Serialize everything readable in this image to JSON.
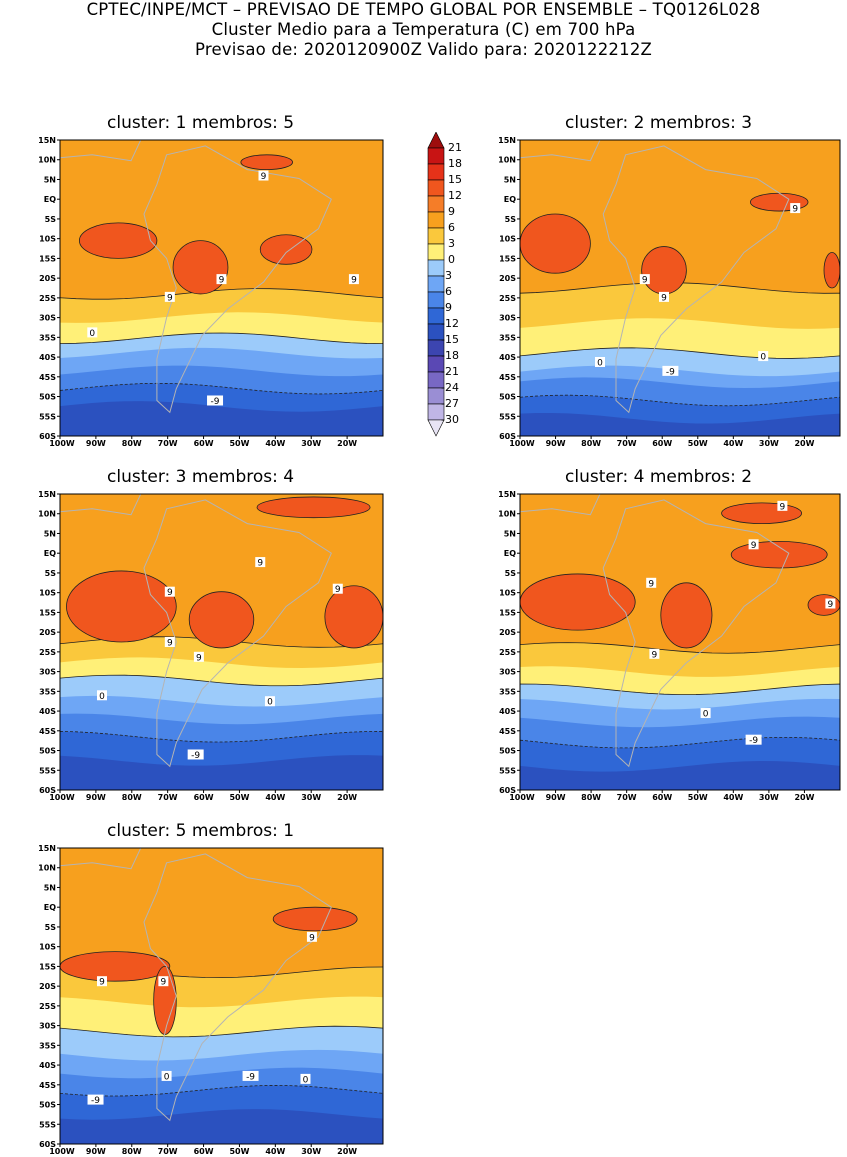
{
  "header": {
    "line1": "CPTEC/INPE/MCT – PREVISAO DE TEMPO GLOBAL POR ENSEMBLE – TQ0126L028",
    "line2": "Cluster Medio para a Temperatura (C) em 700 hPa",
    "line3": "Previsao de: 2020120900Z    Valido para: 2020122212Z"
  },
  "axes": {
    "lat_labels": [
      "15N",
      "10N",
      "5N",
      "EQ",
      "5S",
      "10S",
      "15S",
      "20S",
      "25S",
      "30S",
      "35S",
      "40S",
      "45S",
      "50S",
      "55S",
      "60S"
    ],
    "lon_labels": [
      "100W",
      "90W",
      "80W",
      "70W",
      "60W",
      "50W",
      "40W",
      "30W",
      "20W"
    ]
  },
  "colorbar": {
    "levels": [
      "21",
      "18",
      "15",
      "12",
      "9",
      "6",
      "3",
      "0",
      "-3",
      "-6",
      "-9",
      "-12",
      "-15",
      "-18",
      "-21",
      "-24",
      "-27",
      "-30"
    ],
    "colors": [
      "#9e0d0d",
      "#c81414",
      "#e63219",
      "#f0561e",
      "#f57d28",
      "#f7a01e",
      "#fac83c",
      "#fff078",
      "#9ccbfa",
      "#6ea6f5",
      "#4a85e8",
      "#2f67d6",
      "#2b51bf",
      "#3c45b0",
      "#5a48b4",
      "#7868c4",
      "#9a8ed4",
      "#c0b6e6",
      "#e8e4f4"
    ]
  },
  "colors": {
    "warm_band": "#f7a01e",
    "hot_patch": "#f0561e",
    "mild_band": "#fac83c",
    "cool_band": "#fff078",
    "cold1": "#9ccbfa",
    "cold2": "#6ea6f5",
    "cold3": "#4a85e8",
    "cold4": "#2f67d6",
    "cold5": "#2b51bf",
    "cold6": "#3c45b0",
    "land_outline": "#b4b4b4"
  },
  "panels": [
    {
      "title": "cluster: 1   membros: 5",
      "contour_labels": [
        "9",
        "9",
        "9",
        "9",
        "0",
        "-9"
      ],
      "bands": [
        0.0,
        0.0,
        0.52,
        0.6,
        0.67,
        0.72,
        0.78,
        0.84,
        0.9
      ],
      "patches": [
        [
          0.06,
          0.28,
          0.3,
          0.4
        ],
        [
          0.35,
          0.34,
          0.52,
          0.52
        ],
        [
          0.62,
          0.32,
          0.78,
          0.42
        ],
        [
          0.56,
          0.05,
          0.72,
          0.1
        ]
      ],
      "labels_pos": [
        [
          0.63,
          0.12
        ],
        [
          0.5,
          0.47
        ],
        [
          0.34,
          0.53
        ],
        [
          0.91,
          0.47
        ],
        [
          0.1,
          0.65
        ],
        [
          0.48,
          0.88
        ]
      ]
    },
    {
      "title": "cluster: 2   membros: 3",
      "contour_labels": [
        "9",
        "9",
        "9",
        "0",
        "0",
        "-9"
      ],
      "bands": [
        0.0,
        0.0,
        0.5,
        0.62,
        0.72,
        0.78,
        0.82,
        0.88,
        0.94
      ],
      "patches": [
        [
          0.0,
          0.25,
          0.22,
          0.45
        ],
        [
          0.38,
          0.36,
          0.52,
          0.52
        ],
        [
          0.72,
          0.18,
          0.9,
          0.24
        ],
        [
          0.95,
          0.38,
          1.0,
          0.5
        ]
      ],
      "labels_pos": [
        [
          0.86,
          0.23
        ],
        [
          0.39,
          0.47
        ],
        [
          0.45,
          0.53
        ],
        [
          0.25,
          0.75
        ],
        [
          0.76,
          0.73
        ],
        [
          0.47,
          0.78
        ]
      ]
    },
    {
      "title": "cluster: 3   membros: 4",
      "contour_labels": [
        "9",
        "9",
        "9",
        "9",
        "9",
        "0",
        "0",
        "-9"
      ],
      "bands": [
        0.0,
        0.0,
        0.5,
        0.57,
        0.63,
        0.7,
        0.76,
        0.82,
        0.9
      ],
      "patches": [
        [
          0.02,
          0.26,
          0.36,
          0.5
        ],
        [
          0.4,
          0.33,
          0.6,
          0.52
        ],
        [
          0.82,
          0.31,
          1.0,
          0.52
        ],
        [
          0.61,
          0.01,
          0.96,
          0.08
        ]
      ],
      "labels_pos": [
        [
          0.34,
          0.33
        ],
        [
          0.62,
          0.23
        ],
        [
          0.86,
          0.32
        ],
        [
          0.34,
          0.5
        ],
        [
          0.43,
          0.55
        ],
        [
          0.13,
          0.68
        ],
        [
          0.65,
          0.7
        ],
        [
          0.42,
          0.88
        ]
      ]
    },
    {
      "title": "cluster: 4   membros: 2",
      "contour_labels": [
        "9",
        "9",
        "9",
        "9",
        "9",
        "0",
        "-9"
      ],
      "bands": [
        0.0,
        0.0,
        0.52,
        0.6,
        0.66,
        0.71,
        0.77,
        0.84,
        0.92
      ],
      "patches": [
        [
          0.0,
          0.27,
          0.36,
          0.46
        ],
        [
          0.44,
          0.3,
          0.6,
          0.52
        ],
        [
          0.63,
          0.03,
          0.88,
          0.1
        ],
        [
          0.66,
          0.16,
          0.96,
          0.25
        ],
        [
          0.9,
          0.34,
          1.0,
          0.41
        ]
      ],
      "labels_pos": [
        [
          0.82,
          0.04
        ],
        [
          0.73,
          0.17
        ],
        [
          0.41,
          0.3
        ],
        [
          0.97,
          0.37
        ],
        [
          0.42,
          0.54
        ],
        [
          0.58,
          0.74
        ],
        [
          0.73,
          0.83
        ]
      ]
    },
    {
      "title": "cluster: 5   membros: 1",
      "contour_labels": [
        "9",
        "9",
        "9",
        "0",
        "0",
        "-9",
        "-9"
      ],
      "bands": [
        0.0,
        0.0,
        0.42,
        0.52,
        0.62,
        0.7,
        0.76,
        0.82,
        0.9
      ],
      "patches": [
        [
          0.0,
          0.35,
          0.34,
          0.45
        ],
        [
          0.29,
          0.4,
          0.36,
          0.63
        ],
        [
          0.66,
          0.2,
          0.92,
          0.28
        ]
      ],
      "labels_pos": [
        [
          0.78,
          0.3
        ],
        [
          0.13,
          0.45
        ],
        [
          0.32,
          0.45
        ],
        [
          0.33,
          0.77
        ],
        [
          0.76,
          0.78
        ],
        [
          0.59,
          0.77
        ],
        [
          0.11,
          0.85
        ]
      ]
    }
  ]
}
